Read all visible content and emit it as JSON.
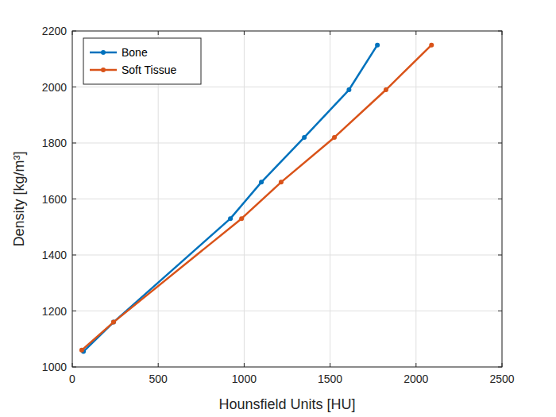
{
  "chart_data": {
    "type": "line",
    "xlabel": "Hounsfield Units [HU]",
    "ylabel": "Density [kg/m³]",
    "xlim": [
      0,
      2500
    ],
    "xticks": [
      0,
      500,
      1000,
      1500,
      2000,
      2500
    ],
    "ylim": [
      1000,
      2200
    ],
    "yticks": [
      1000,
      1200,
      1400,
      1600,
      1800,
      2000,
      2200
    ],
    "grid": true,
    "legend": "northwest",
    "marker": "circle",
    "line_style": "solid",
    "series": [
      {
        "name": "Bone",
        "color": "#0072bd",
        "x": [
          65,
          240,
          920,
          1100,
          1350,
          1610,
          1775
        ],
        "values": [
          1055,
          1160,
          1530,
          1660,
          1820,
          1990,
          2150
        ]
      },
      {
        "name": "Soft Tissue",
        "color": "#d95319",
        "x": [
          55,
          240,
          985,
          1215,
          1525,
          1825,
          2090
        ],
        "values": [
          1060,
          1160,
          1530,
          1660,
          1820,
          1990,
          2150
        ]
      }
    ]
  }
}
